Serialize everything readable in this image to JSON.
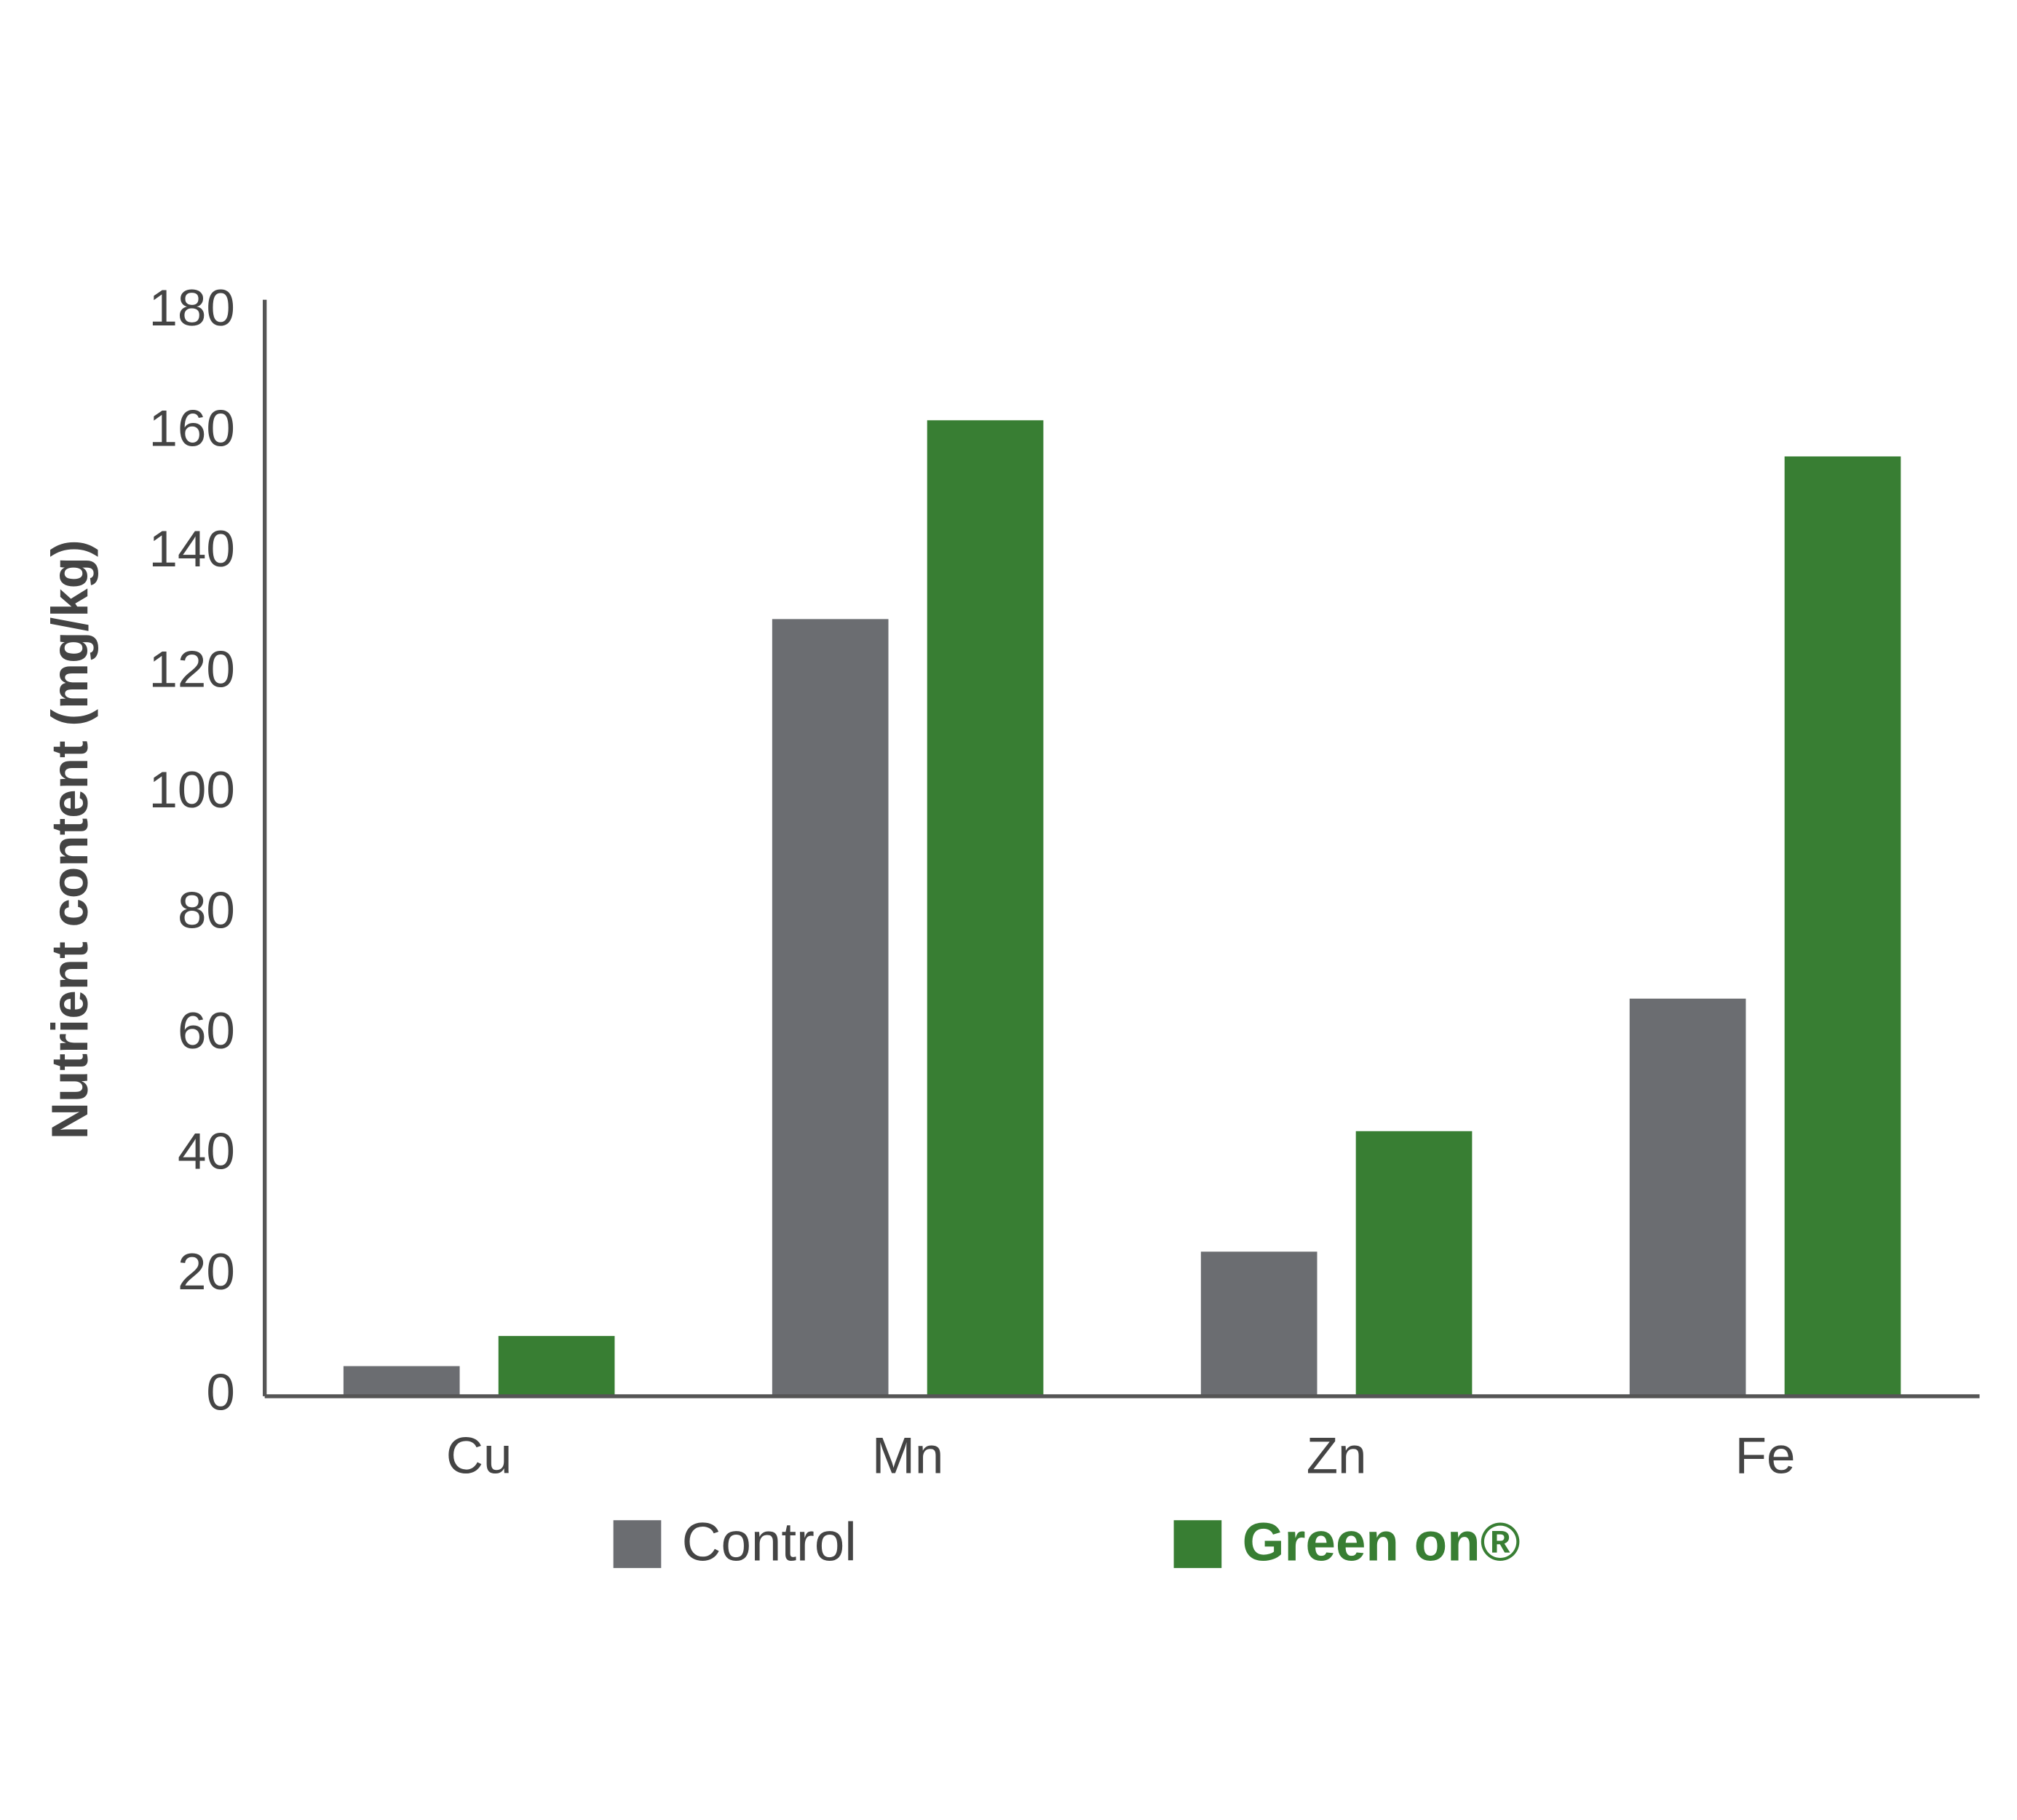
{
  "chart_data": {
    "type": "bar",
    "y_label": "Nutrient content (mg/kg)",
    "categories": [
      "Cu",
      "Mn",
      "Zn",
      "Fe"
    ],
    "series": [
      {
        "name": "Control",
        "color": "#6b6d71",
        "values": [
          5,
          129,
          24,
          66
        ]
      },
      {
        "name": "Green on®",
        "color": "#387e33",
        "values": [
          10,
          162,
          44,
          156
        ]
      }
    ],
    "ylim": [
      0,
      182
    ],
    "yticks": [
      0,
      20,
      40,
      60,
      80,
      100,
      120,
      140,
      160,
      180
    ],
    "grid": false
  }
}
